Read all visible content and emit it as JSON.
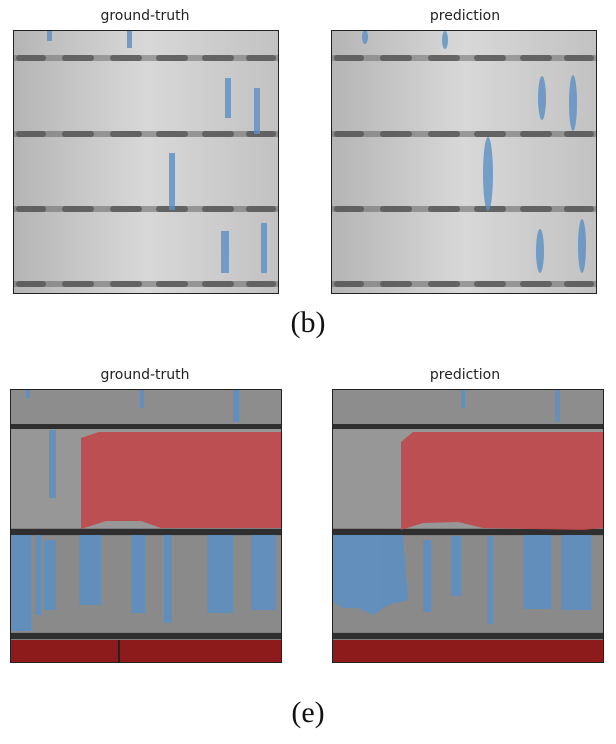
{
  "figure_b": {
    "left_title": "ground-truth",
    "right_title": "prediction",
    "caption": "(b)"
  },
  "figure_e": {
    "left_title": "ground-truth",
    "right_title": "prediction",
    "caption": "(e)"
  },
  "colors": {
    "background": "#cfcfcf",
    "seam": "#6e6e6e",
    "blue_overlay": "#5b8fc4",
    "red_overlay": "#c0474a",
    "dark_red_overlay": "#8e1b1b"
  }
}
